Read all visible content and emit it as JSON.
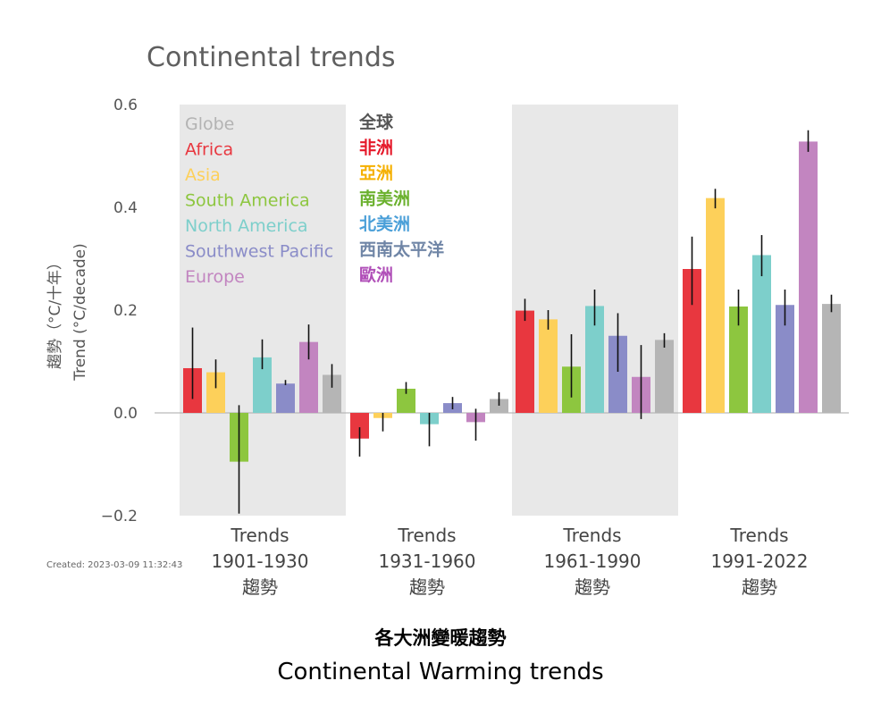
{
  "chart_data": {
    "type": "bar",
    "title": "Continental trends",
    "ylabel_zh": "趨勢（°C/十年）",
    "ylabel_en": "Trend (°C/decade)",
    "ylim": [
      -0.2,
      0.6
    ],
    "yticks": [
      "−0.2",
      "0.0",
      "0.2",
      "0.4",
      "0.6"
    ],
    "ytick_values": [
      -0.2,
      0.0,
      0.2,
      0.4,
      0.6
    ],
    "grid": false,
    "legend_en": [
      "Globe",
      "Africa",
      "Asia",
      "South America",
      "North America",
      "Southwest Pacific",
      "Europe"
    ],
    "legend_zh": [
      "全球",
      "非洲",
      "亞洲",
      "南美洲",
      "北美洲",
      "西南太平洋",
      "歐洲"
    ],
    "legend_placement": "top-left",
    "groups": [
      {
        "line1": "Trends",
        "line2": "1901-1930",
        "line3": "趨勢",
        "shaded": true,
        "values": [
          0.087,
          0.079,
          -0.095,
          0.108,
          0.057,
          0.138,
          0.074
        ],
        "err": [
          [
            0.027,
            0.166
          ],
          [
            0.048,
            0.104
          ],
          [
            -0.196,
            0.015
          ],
          [
            0.085,
            0.143
          ],
          [
            0.054,
            0.064
          ],
          [
            0.104,
            0.172
          ],
          [
            0.049,
            0.095
          ]
        ]
      },
      {
        "line1": "Trends",
        "line2": "1931-1960",
        "line3": "趨勢",
        "shaded": false,
        "values": [
          -0.05,
          -0.01,
          0.047,
          -0.022,
          0.019,
          -0.018,
          0.027
        ],
        "err": [
          [
            -0.085,
            -0.028
          ],
          [
            -0.036,
            0.0
          ],
          [
            0.037,
            0.06
          ],
          [
            -0.065,
            0.0
          ],
          [
            0.007,
            0.031
          ],
          [
            -0.054,
            0.008
          ],
          [
            0.014,
            0.04
          ]
        ]
      },
      {
        "line1": "Trends",
        "line2": "1961-1990",
        "line3": "趨勢",
        "shaded": true,
        "values": [
          0.199,
          0.182,
          0.09,
          0.208,
          0.15,
          0.07,
          0.142
        ],
        "err": [
          [
            0.179,
            0.222
          ],
          [
            0.162,
            0.2
          ],
          [
            0.03,
            0.153
          ],
          [
            0.17,
            0.24
          ],
          [
            0.08,
            0.194
          ],
          [
            -0.012,
            0.132
          ],
          [
            0.127,
            0.155
          ]
        ]
      },
      {
        "line1": "Trends",
        "line2": "1991-2022",
        "line3": "趨勢",
        "shaded": false,
        "values": [
          0.28,
          0.418,
          0.207,
          0.307,
          0.21,
          0.528,
          0.212
        ],
        "err": [
          [
            0.21,
            0.343
          ],
          [
            0.398,
            0.436
          ],
          [
            0.17,
            0.24
          ],
          [
            0.266,
            0.346
          ],
          [
            0.17,
            0.24
          ],
          [
            0.508,
            0.55
          ],
          [
            0.196,
            0.23
          ]
        ]
      }
    ],
    "series": [
      {
        "name": "Africa",
        "color": "#e8373f"
      },
      {
        "name": "Asia",
        "color": "#fdd05a"
      },
      {
        "name": "South America",
        "color": "#8dc63f"
      },
      {
        "name": "North America",
        "color": "#7dcfcb"
      },
      {
        "name": "Southwest Pacific",
        "color": "#8a8cc8"
      },
      {
        "name": "Europe",
        "color": "#c285c0"
      },
      {
        "name": "Globe",
        "color": "#b5b5b5"
      }
    ],
    "legend_colors_en": [
      "#b3b3b3",
      "#e8373f",
      "#fdd05a",
      "#8dc63f",
      "#7dcfcb",
      "#8a8cc8",
      "#c285c0"
    ],
    "legend_colors_zh": [
      "#555555",
      "#e5192a",
      "#f5b000",
      "#6bb12e",
      "#4a9fd8",
      "#6f85a6",
      "#b04fb8"
    ]
  },
  "created": "Created: 2023-03-09 11:32:43",
  "caption_zh": "各大洲變暖趨勢",
  "caption_en": "Continental Warming trends"
}
